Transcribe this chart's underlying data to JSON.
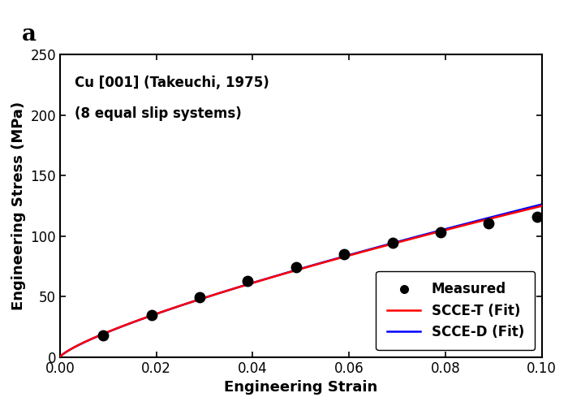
{
  "title_annotation": "a",
  "annotation_line1": "Cu [001] (Takeuchi, 1975)",
  "annotation_line2": "(8 equal slip systems)",
  "xlabel": "Engineering Strain",
  "ylabel": "Engineering Stress (MPa)",
  "xlim": [
    0.0,
    0.1
  ],
  "ylim": [
    0,
    250
  ],
  "xticks": [
    0.0,
    0.02,
    0.04,
    0.06,
    0.08,
    0.1
  ],
  "yticks": [
    0,
    50,
    100,
    150,
    200,
    250
  ],
  "measured_x": [
    0.009,
    0.019,
    0.029,
    0.039,
    0.049,
    0.059,
    0.069,
    0.079,
    0.089,
    0.099
  ],
  "measured_y": [
    18.0,
    35.0,
    49.5,
    63.0,
    74.5,
    85.0,
    94.5,
    103.0,
    110.5,
    116.0
  ],
  "scce_t_color": "#FF0000",
  "scce_d_color": "#0000FF",
  "measured_color": "#000000",
  "background_color": "#ffffff",
  "legend_measured": "Measured",
  "legend_scce_t": "SCCE-T (Fit)",
  "legend_scce_d": "SCCE-D (Fit)",
  "marker_size": 9,
  "line_width": 1.8,
  "axis_label_fontsize": 13,
  "tick_fontsize": 12,
  "annotation_fontsize": 12,
  "legend_fontsize": 12,
  "panel_label_fontsize": 20
}
